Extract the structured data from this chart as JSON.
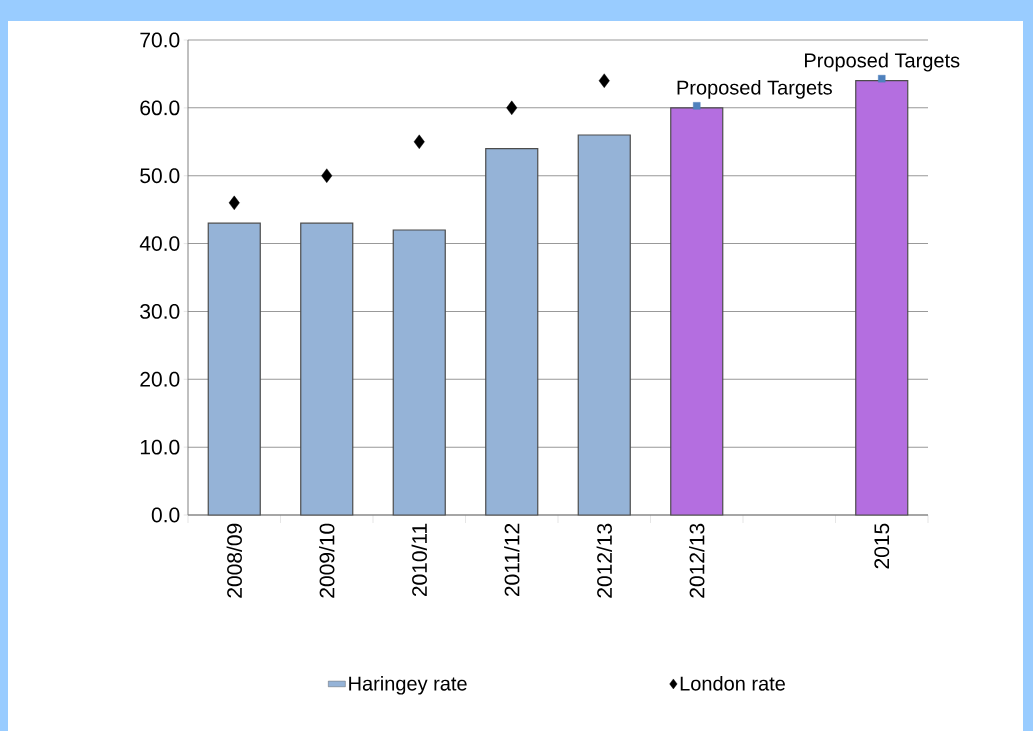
{
  "chart_data": {
    "type": "bar",
    "categories": [
      "2008/09",
      "2009/10",
      "2010/11",
      "2011/12",
      "2012/13",
      "2012/13",
      null,
      "2015"
    ],
    "series": [
      {
        "name": "Haringey rate",
        "color": "#95b3d7",
        "colors": [
          "#95b3d7",
          "#95b3d7",
          "#95b3d7",
          "#95b3d7",
          "#95b3d7",
          "#b46ee0",
          "#b46ee0",
          "#b46ee0"
        ],
        "values": [
          43,
          43,
          42,
          54,
          56,
          60,
          null,
          64
        ]
      },
      {
        "name": "London rate",
        "type": "scatter",
        "marker": "diamond",
        "color": "#000000",
        "values": [
          46,
          50,
          55,
          60,
          64,
          null,
          null,
          null
        ]
      },
      {
        "type": "scatter",
        "marker": "square",
        "color": "#4f81bd",
        "values": [
          null,
          null,
          null,
          null,
          null,
          60.3,
          null,
          64.3
        ]
      }
    ],
    "ylim": [
      0,
      70
    ],
    "yticks": [
      {
        "value": 0,
        "label": "0.0"
      },
      {
        "value": 10,
        "label": "10.0"
      },
      {
        "value": 20,
        "label": "20.0"
      },
      {
        "value": 30,
        "label": "30.0"
      },
      {
        "value": 40,
        "label": "40.0"
      },
      {
        "value": 50,
        "label": "50.0"
      },
      {
        "value": 60,
        "label": "60.0"
      },
      {
        "value": 70,
        "label": "70.0"
      }
    ],
    "grid": "y",
    "legend": "bottom",
    "annotations": [
      "Proposed Targets",
      "Proposed Targets"
    ]
  }
}
